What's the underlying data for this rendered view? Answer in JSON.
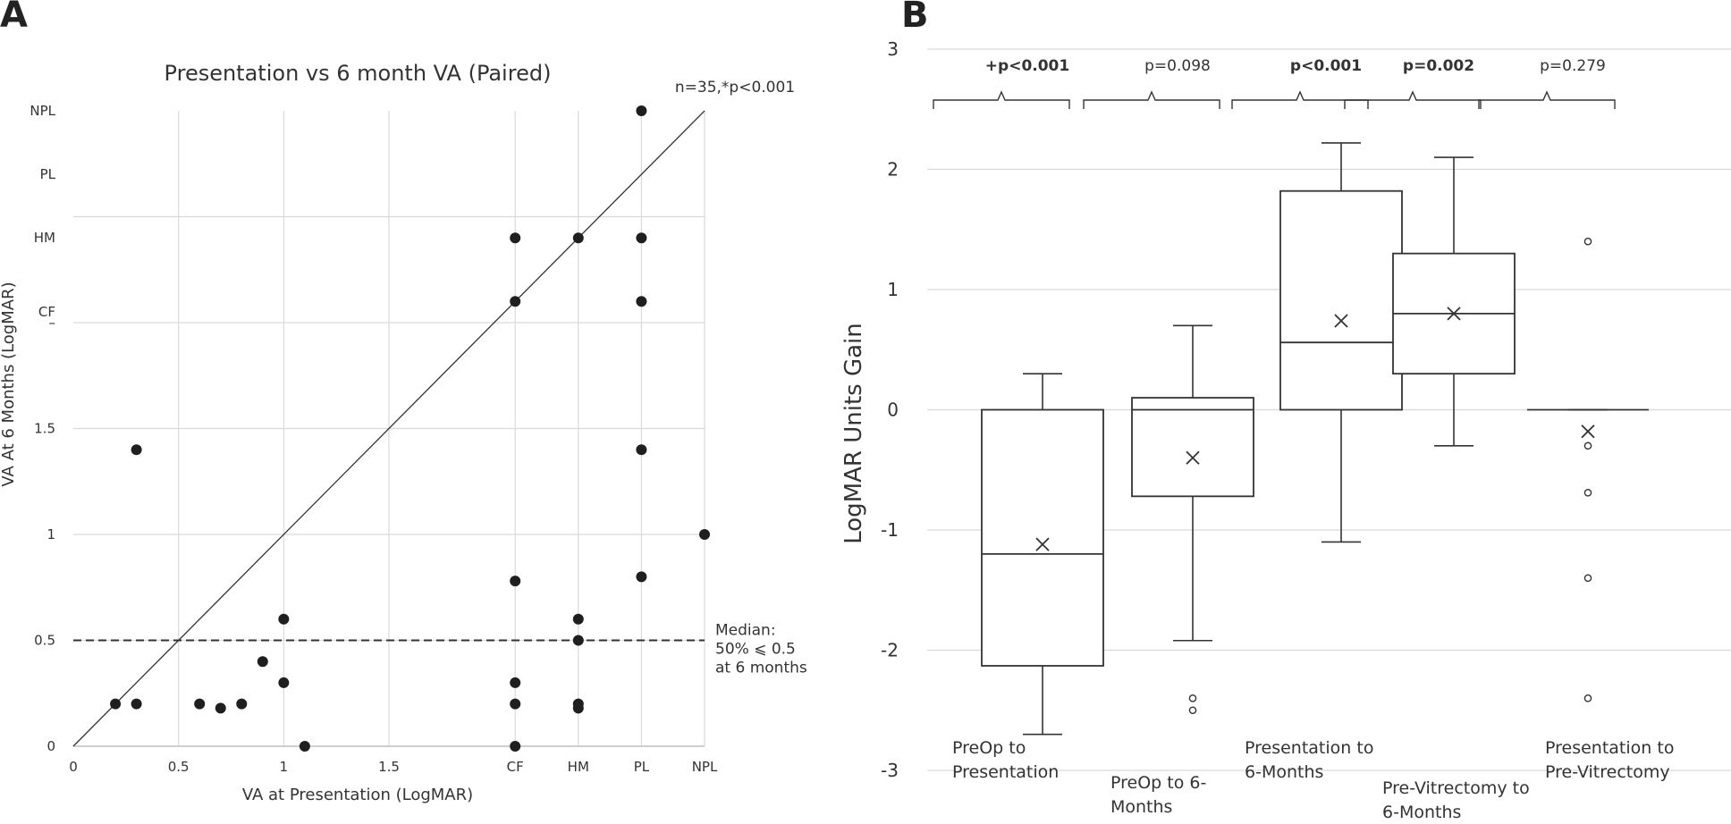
{
  "panel_a": {
    "letter": "A",
    "chart_data": {
      "type": "scatter",
      "title": "Presentation vs 6 month VA (Paired)",
      "annotation": "n=35,*p<0.001",
      "xlabel": "VA at Presentation (LogMAR)",
      "ylabel": "VA At 6 Months (LogMAR)",
      "x_ticks": [
        {
          "value": 0,
          "label": "0"
        },
        {
          "value": 0.5,
          "label": "0.5"
        },
        {
          "value": 1,
          "label": "1"
        },
        {
          "value": 1.5,
          "label": "1.5"
        },
        {
          "value": 2.1,
          "label": "CF"
        },
        {
          "value": 2.4,
          "label": "HM"
        },
        {
          "value": 2.7,
          "label": "PL"
        },
        {
          "value": 3.0,
          "label": "NPL"
        }
      ],
      "y_ticks": [
        {
          "value": 0,
          "label": "0"
        },
        {
          "value": 0.5,
          "label": "0.5"
        },
        {
          "value": 1,
          "label": "1"
        },
        {
          "value": 1.5,
          "label": "1.5"
        },
        {
          "value": 2.0,
          "label": "–"
        },
        {
          "value": 2.05,
          "label": "CF"
        },
        {
          "value": 2.4,
          "label": "HM"
        },
        {
          "value": 2.7,
          "label": "PL"
        },
        {
          "value": 3.0,
          "label": "NPL"
        }
      ],
      "xlim": [
        0,
        3.0
      ],
      "ylim": [
        0,
        3.0
      ],
      "points": [
        [
          0.2,
          0.2
        ],
        [
          0.3,
          0.2
        ],
        [
          0.3,
          1.4
        ],
        [
          0.6,
          0.2
        ],
        [
          0.7,
          0.18
        ],
        [
          0.8,
          0.2
        ],
        [
          0.9,
          0.4
        ],
        [
          1.0,
          0.6
        ],
        [
          1.0,
          0.3
        ],
        [
          1.1,
          0.0
        ],
        [
          2.1,
          2.4
        ],
        [
          2.1,
          2.1
        ],
        [
          2.1,
          0.78
        ],
        [
          2.1,
          0.3
        ],
        [
          2.1,
          0.2
        ],
        [
          2.1,
          0.0
        ],
        [
          2.4,
          2.4
        ],
        [
          2.4,
          0.6
        ],
        [
          2.4,
          0.5
        ],
        [
          2.4,
          0.2
        ],
        [
          2.4,
          0.18
        ],
        [
          2.7,
          3.0
        ],
        [
          2.7,
          2.4
        ],
        [
          2.7,
          2.1
        ],
        [
          2.7,
          1.4
        ],
        [
          2.7,
          0.8
        ],
        [
          3.0,
          1.0
        ]
      ],
      "reference_line": "y = x",
      "median_line": {
        "value": 0.5,
        "label_lines": [
          "Median:",
          "50% ⩽ 0.5",
          "at 6 months"
        ]
      }
    }
  },
  "panel_b": {
    "letter": "B",
    "chart_data": {
      "type": "box",
      "ylabel": "LogMAR Units Gain",
      "ylim": [
        -3,
        3
      ],
      "y_ticks": [
        {
          "value": 3,
          "label": "3"
        },
        {
          "value": 2,
          "label": "2"
        },
        {
          "value": 1,
          "label": "1"
        },
        {
          "value": 0,
          "label": "0"
        },
        {
          "value": -1,
          "label": "-1"
        },
        {
          "value": -2,
          "label": "-2"
        },
        {
          "value": -3,
          "label": "-3"
        }
      ],
      "boxes": [
        {
          "name_lines": [
            "PreOp to",
            "Presentation"
          ],
          "p_value": "+p<0.001",
          "bold": true,
          "whisker_low": -2.7,
          "q1": -2.13,
          "median": -1.2,
          "q3": 0.0,
          "whisker_high": 0.3,
          "mean": -1.12,
          "outliers": []
        },
        {
          "name_lines": [
            "PreOp to 6-",
            "Months"
          ],
          "p_value": "p=0.098",
          "bold": false,
          "whisker_low": -1.92,
          "q1": -0.72,
          "median": 0.0,
          "q3": 0.1,
          "whisker_high": 0.7,
          "mean": -0.4,
          "outliers": [
            -2.4,
            -2.5
          ]
        },
        {
          "name_lines": [
            "Presentation to",
            "6-Months"
          ],
          "p_value": "p<0.001",
          "bold": true,
          "whisker_low": -1.1,
          "q1": 0.0,
          "median": 0.56,
          "q3": 1.82,
          "whisker_high": 2.22,
          "mean": 0.74,
          "outliers": []
        },
        {
          "name_lines": [
            "Pre-Vitrectomy to",
            "6-Months"
          ],
          "p_value": "p=0.002",
          "bold": true,
          "whisker_low": -0.3,
          "q1": 0.3,
          "median": 0.8,
          "q3": 1.3,
          "whisker_high": 2.1,
          "mean": 0.8,
          "outliers": []
        },
        {
          "name_lines": [
            "Presentation to",
            "Pre-Vitrectomy"
          ],
          "p_value": "p=0.279",
          "bold": false,
          "whisker_low": 0.0,
          "q1": 0.0,
          "median": 0.0,
          "q3": 0.0,
          "whisker_high": 0.0,
          "mean": -0.18,
          "outliers": [
            1.4,
            -0.3,
            -0.69,
            -1.4,
            -2.4
          ]
        }
      ]
    }
  }
}
